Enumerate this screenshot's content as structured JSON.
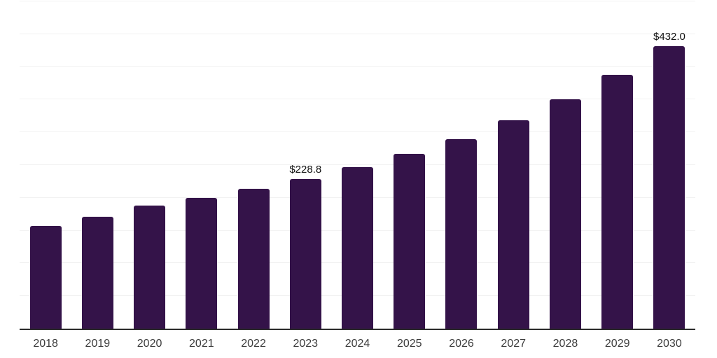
{
  "chart_data": {
    "type": "bar",
    "title": "",
    "xlabel": "",
    "ylabel": "",
    "categories": [
      "2018",
      "2019",
      "2020",
      "2021",
      "2022",
      "2023",
      "2024",
      "2025",
      "2026",
      "2027",
      "2028",
      "2029",
      "2030"
    ],
    "values": [
      157.1,
      170.9,
      188.0,
      199.8,
      213.7,
      228.8,
      246.8,
      267.1,
      289.5,
      318.4,
      350.4,
      387.8,
      432.0
    ],
    "data_labels": [
      null,
      null,
      null,
      null,
      null,
      "$228.8",
      null,
      null,
      null,
      null,
      null,
      null,
      "$432.0"
    ],
    "ylim": [
      0,
      500
    ],
    "gridline_step": 50,
    "grid": "horizontal-only",
    "y_tick_labels_visible": false,
    "legend": "none",
    "colors": {
      "bar": "#341349",
      "axis_line": "#2b2b2b",
      "gridline": "#f2f2f2",
      "tick_label": "#3c3c3c",
      "data_label": "#111111",
      "background": "#ffffff"
    }
  }
}
